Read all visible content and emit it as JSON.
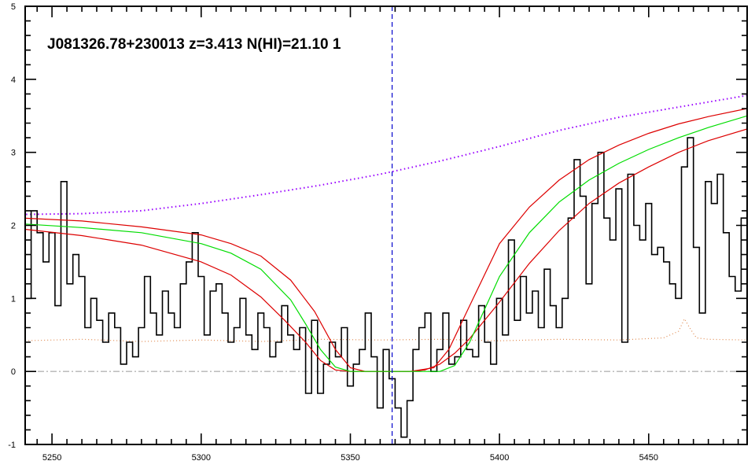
{
  "chart_data": {
    "type": "line",
    "title": "J081326.78+230013 z=3.413 N(HI)=21.10 1",
    "xlabel": "",
    "ylabel": "",
    "xlim": [
      5241,
      5483
    ],
    "ylim": [
      -1,
      5
    ],
    "x_major_ticks": [
      5250,
      5300,
      5350,
      5400,
      5450
    ],
    "y_major_ticks": [
      -1,
      0,
      1,
      2,
      3,
      4,
      5
    ],
    "grid": false,
    "legend": "none",
    "marker_x": 5364,
    "zero_level": 0,
    "colors": {
      "flux": "#000000",
      "fit": "#00dd00",
      "fit_bounds": "#dd0000",
      "continuum": "#9900ff",
      "error": "#e08a50",
      "marker": "#0000cc",
      "zero_line": "#999999",
      "axes": "#000000"
    },
    "series": [
      {
        "key": "flux",
        "style": "step",
        "x": [
          5240,
          5242,
          5244,
          5246,
          5248,
          5250,
          5252,
          5254,
          5256,
          5258,
          5260,
          5262,
          5264,
          5266,
          5268,
          5270,
          5272,
          5274,
          5276,
          5278,
          5280,
          5282,
          5284,
          5286,
          5288,
          5290,
          5292,
          5294,
          5296,
          5298,
          5300,
          5302,
          5304,
          5306,
          5308,
          5310,
          5312,
          5314,
          5316,
          5318,
          5320,
          5322,
          5324,
          5326,
          5328,
          5330,
          5332,
          5334,
          5336,
          5338,
          5340,
          5342,
          5344,
          5346,
          5348,
          5350,
          5352,
          5354,
          5356,
          5358,
          5360,
          5362,
          5364,
          5366,
          5368,
          5370,
          5372,
          5374,
          5376,
          5378,
          5380,
          5382,
          5384,
          5386,
          5388,
          5390,
          5392,
          5394,
          5396,
          5398,
          5400,
          5402,
          5404,
          5406,
          5408,
          5410,
          5412,
          5414,
          5416,
          5418,
          5420,
          5422,
          5424,
          5426,
          5428,
          5430,
          5432,
          5434,
          5436,
          5438,
          5440,
          5442,
          5444,
          5446,
          5448,
          5450,
          5452,
          5454,
          5456,
          5458,
          5460,
          5462,
          5464,
          5466,
          5468,
          5470,
          5472,
          5474,
          5476,
          5478,
          5480,
          5482
        ],
        "y": [
          1.4,
          1.0,
          2.2,
          1.9,
          1.5,
          1.9,
          0.9,
          2.6,
          1.2,
          1.6,
          1.3,
          0.6,
          1.0,
          0.7,
          0.4,
          0.8,
          0.6,
          0.1,
          0.4,
          0.2,
          0.6,
          1.3,
          0.8,
          0.5,
          1.1,
          0.8,
          0.6,
          1.2,
          1.5,
          1.9,
          1.3,
          0.5,
          1.1,
          1.2,
          0.8,
          0.4,
          0.6,
          1.0,
          0.5,
          0.3,
          0.8,
          0.6,
          0.2,
          0.4,
          0.9,
          0.5,
          0.3,
          0.6,
          -0.3,
          0.7,
          -0.3,
          0.1,
          0.4,
          0.2,
          0.6,
          -0.2,
          0.1,
          0.3,
          0.8,
          0.2,
          -0.5,
          0.3,
          -0.1,
          -0.5,
          -0.9,
          -0.4,
          0.3,
          0.6,
          0.8,
          0.0,
          0.3,
          0.8,
          0.1,
          0.2,
          0.7,
          0.3,
          0.2,
          0.9,
          0.4,
          0.1,
          1.0,
          0.5,
          1.8,
          0.7,
          1.3,
          0.8,
          1.1,
          0.6,
          1.4,
          0.9,
          0.6,
          1.0,
          2.1,
          2.9,
          2.4,
          1.2,
          2.3,
          3.0,
          2.1,
          1.8,
          2.5,
          0.4,
          2.7,
          2.0,
          1.8,
          2.3,
          1.6,
          1.7,
          1.5,
          1.2,
          1.0,
          2.8,
          3.2,
          1.7,
          0.8,
          2.6,
          2.3,
          2.7,
          1.9,
          1.3,
          1.1,
          2.1
        ]
      },
      {
        "key": "fit",
        "style": "line",
        "x": [
          5240,
          5260,
          5280,
          5300,
          5310,
          5320,
          5330,
          5335,
          5340,
          5345,
          5350,
          5360,
          5370,
          5380,
          5385,
          5390,
          5395,
          5400,
          5410,
          5420,
          5430,
          5440,
          5450,
          5460,
          5470,
          5483
        ],
        "y": [
          2.02,
          1.97,
          1.9,
          1.75,
          1.62,
          1.4,
          0.98,
          0.65,
          0.3,
          0.06,
          0.0,
          0.0,
          0.0,
          0.0,
          0.08,
          0.4,
          0.85,
          1.3,
          1.9,
          2.32,
          2.62,
          2.85,
          3.04,
          3.2,
          3.34,
          3.5
        ]
      },
      {
        "key": "fit_upper",
        "style": "line",
        "x": [
          5240,
          5260,
          5280,
          5300,
          5310,
          5320,
          5330,
          5338,
          5345,
          5350,
          5355,
          5360,
          5370,
          5378,
          5383,
          5390,
          5400,
          5410,
          5420,
          5430,
          5440,
          5450,
          5460,
          5470,
          5483
        ],
        "y": [
          2.1,
          2.06,
          1.98,
          1.87,
          1.75,
          1.58,
          1.25,
          0.82,
          0.3,
          0.05,
          0.0,
          0.0,
          0.0,
          0.05,
          0.3,
          0.9,
          1.75,
          2.25,
          2.62,
          2.9,
          3.1,
          3.26,
          3.39,
          3.49,
          3.6
        ]
      },
      {
        "key": "fit_lower",
        "style": "line",
        "x": [
          5240,
          5260,
          5280,
          5300,
          5310,
          5320,
          5328,
          5335,
          5340,
          5345,
          5350,
          5370,
          5375,
          5380,
          5385,
          5390,
          5400,
          5410,
          5420,
          5430,
          5440,
          5450,
          5460,
          5470,
          5483
        ],
        "y": [
          1.95,
          1.86,
          1.73,
          1.5,
          1.32,
          1.02,
          0.7,
          0.4,
          0.15,
          0.02,
          0.0,
          0.0,
          0.02,
          0.1,
          0.25,
          0.45,
          0.95,
          1.48,
          1.93,
          2.3,
          2.58,
          2.8,
          3.0,
          3.16,
          3.32
        ]
      },
      {
        "key": "continuum",
        "style": "dotted",
        "x": [
          5240,
          5260,
          5280,
          5300,
          5320,
          5340,
          5360,
          5380,
          5400,
          5420,
          5440,
          5460,
          5483
        ],
        "y": [
          2.15,
          2.16,
          2.2,
          2.3,
          2.42,
          2.55,
          2.7,
          2.88,
          3.08,
          3.3,
          3.48,
          3.62,
          3.78
        ]
      },
      {
        "key": "error",
        "style": "dotted",
        "x": [
          5240,
          5260,
          5280,
          5300,
          5320,
          5340,
          5360,
          5380,
          5400,
          5420,
          5440,
          5455,
          5460,
          5462,
          5464,
          5466,
          5470,
          5483
        ],
        "y": [
          0.42,
          0.44,
          0.41,
          0.43,
          0.41,
          0.44,
          0.43,
          0.44,
          0.42,
          0.44,
          0.43,
          0.46,
          0.55,
          0.72,
          0.58,
          0.46,
          0.44,
          0.43
        ]
      }
    ]
  }
}
